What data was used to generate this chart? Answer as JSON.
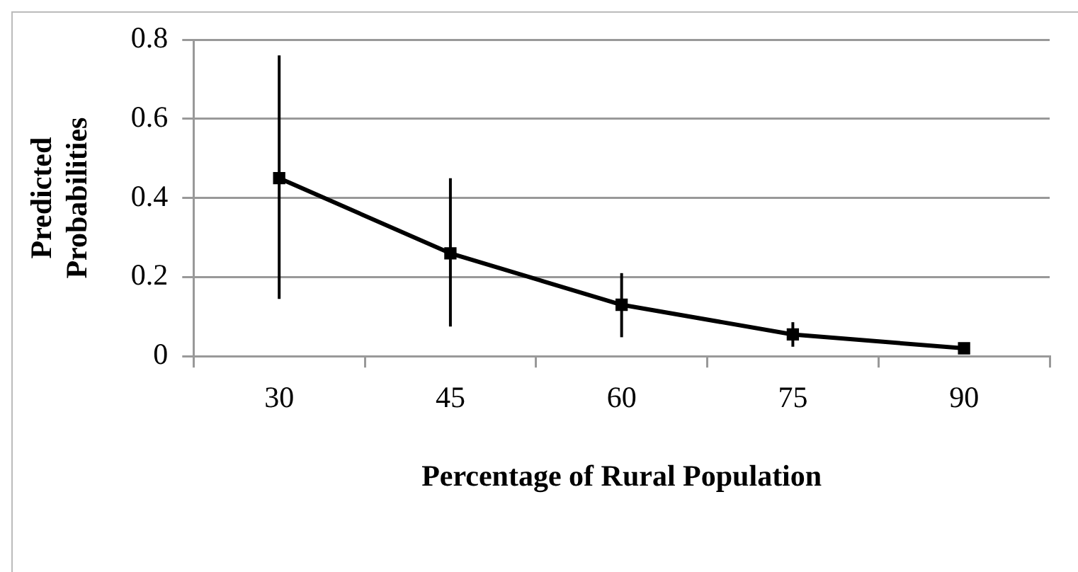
{
  "chart_data": {
    "type": "line",
    "xlabel": "Percentage of Rural Population",
    "ylabel": "Predicted Probabilities",
    "categories": [
      "30",
      "45",
      "60",
      "75",
      "90"
    ],
    "series": [
      {
        "color": "#000000",
        "values": [
          0.45,
          0.26,
          0.13,
          0.055,
          0.02
        ],
        "errors": [
          [
            0.145,
            0.76
          ],
          [
            0.075,
            0.45
          ],
          [
            0.048,
            0.21
          ],
          [
            0.024,
            0.086
          ],
          null
        ]
      }
    ],
    "ylim": [
      0,
      0.8
    ],
    "yticks": [
      0,
      0.2,
      0.4,
      0.6,
      0.8
    ],
    "grid": "y",
    "legend": false,
    "marker": "square",
    "line_style": "solid"
  }
}
